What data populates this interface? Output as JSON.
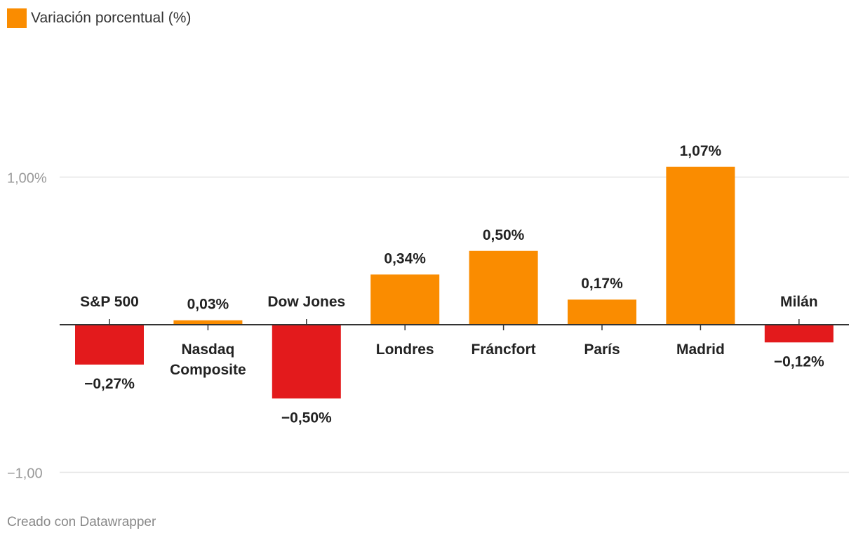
{
  "legend": {
    "label": "Variación porcentual (%)",
    "color": "#fa8c00"
  },
  "footer": {
    "credit": "Creado con Datawrapper"
  },
  "colors": {
    "positive": "#fa8c00",
    "negative": "#e31a1c",
    "grid": "#e5e5e5",
    "axis": "#333333",
    "tick_label": "#999999",
    "text": "#222222"
  },
  "chart_data": {
    "type": "bar",
    "categories": [
      "S&P 500",
      "Nasdaq Composite",
      "Dow Jones",
      "Londres",
      "Fráncfort",
      "París",
      "Madrid",
      "Milán"
    ],
    "values": [
      -0.27,
      0.03,
      -0.5,
      0.34,
      0.5,
      0.17,
      1.07,
      -0.12
    ],
    "value_labels": [
      "−0,27%",
      "0,03%",
      "−0,50%",
      "0,34%",
      "0,50%",
      "0,17%",
      "1,07%",
      "−0,12%"
    ],
    "y_ticks": [
      {
        "value": 1,
        "label": "1,00%"
      },
      {
        "value": -1,
        "label": "−1,00"
      }
    ],
    "grid": true
  }
}
